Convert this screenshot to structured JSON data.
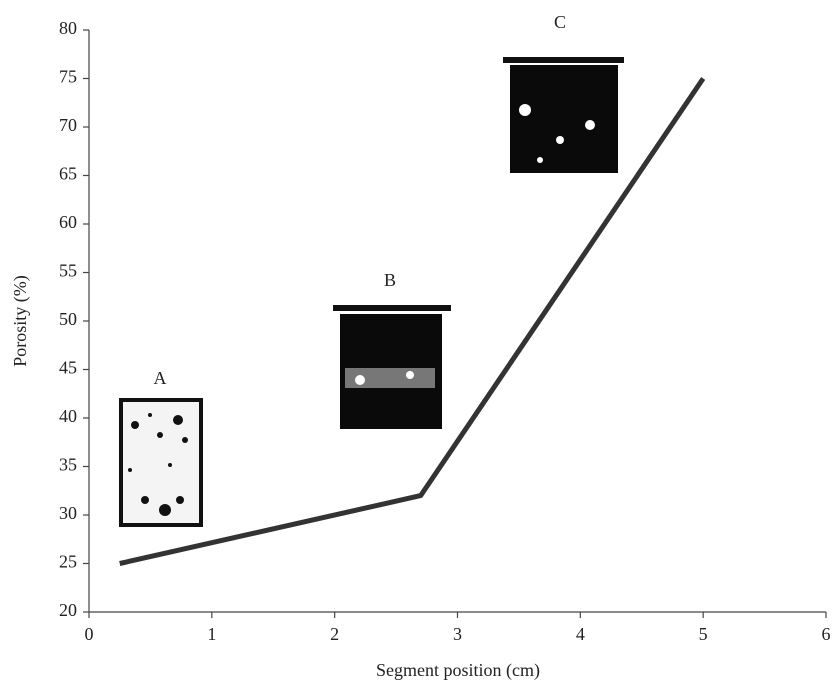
{
  "chart_data": {
    "type": "line",
    "x_label": "Segment position (cm)",
    "y_label": "Porosity (%)",
    "x": [
      0.25,
      2.7,
      5
    ],
    "values": [
      25,
      32,
      75
    ],
    "color": "#333333",
    "xlim": [
      0,
      6
    ],
    "xticks": [
      0,
      1,
      2,
      3,
      4,
      5,
      6
    ],
    "ylim": [
      20,
      80
    ],
    "yticks": [
      20,
      25,
      30,
      35,
      40,
      45,
      50,
      55,
      60,
      65,
      70,
      75,
      80
    ],
    "grid": false,
    "annotations": [
      "A",
      "B",
      "C"
    ]
  }
}
